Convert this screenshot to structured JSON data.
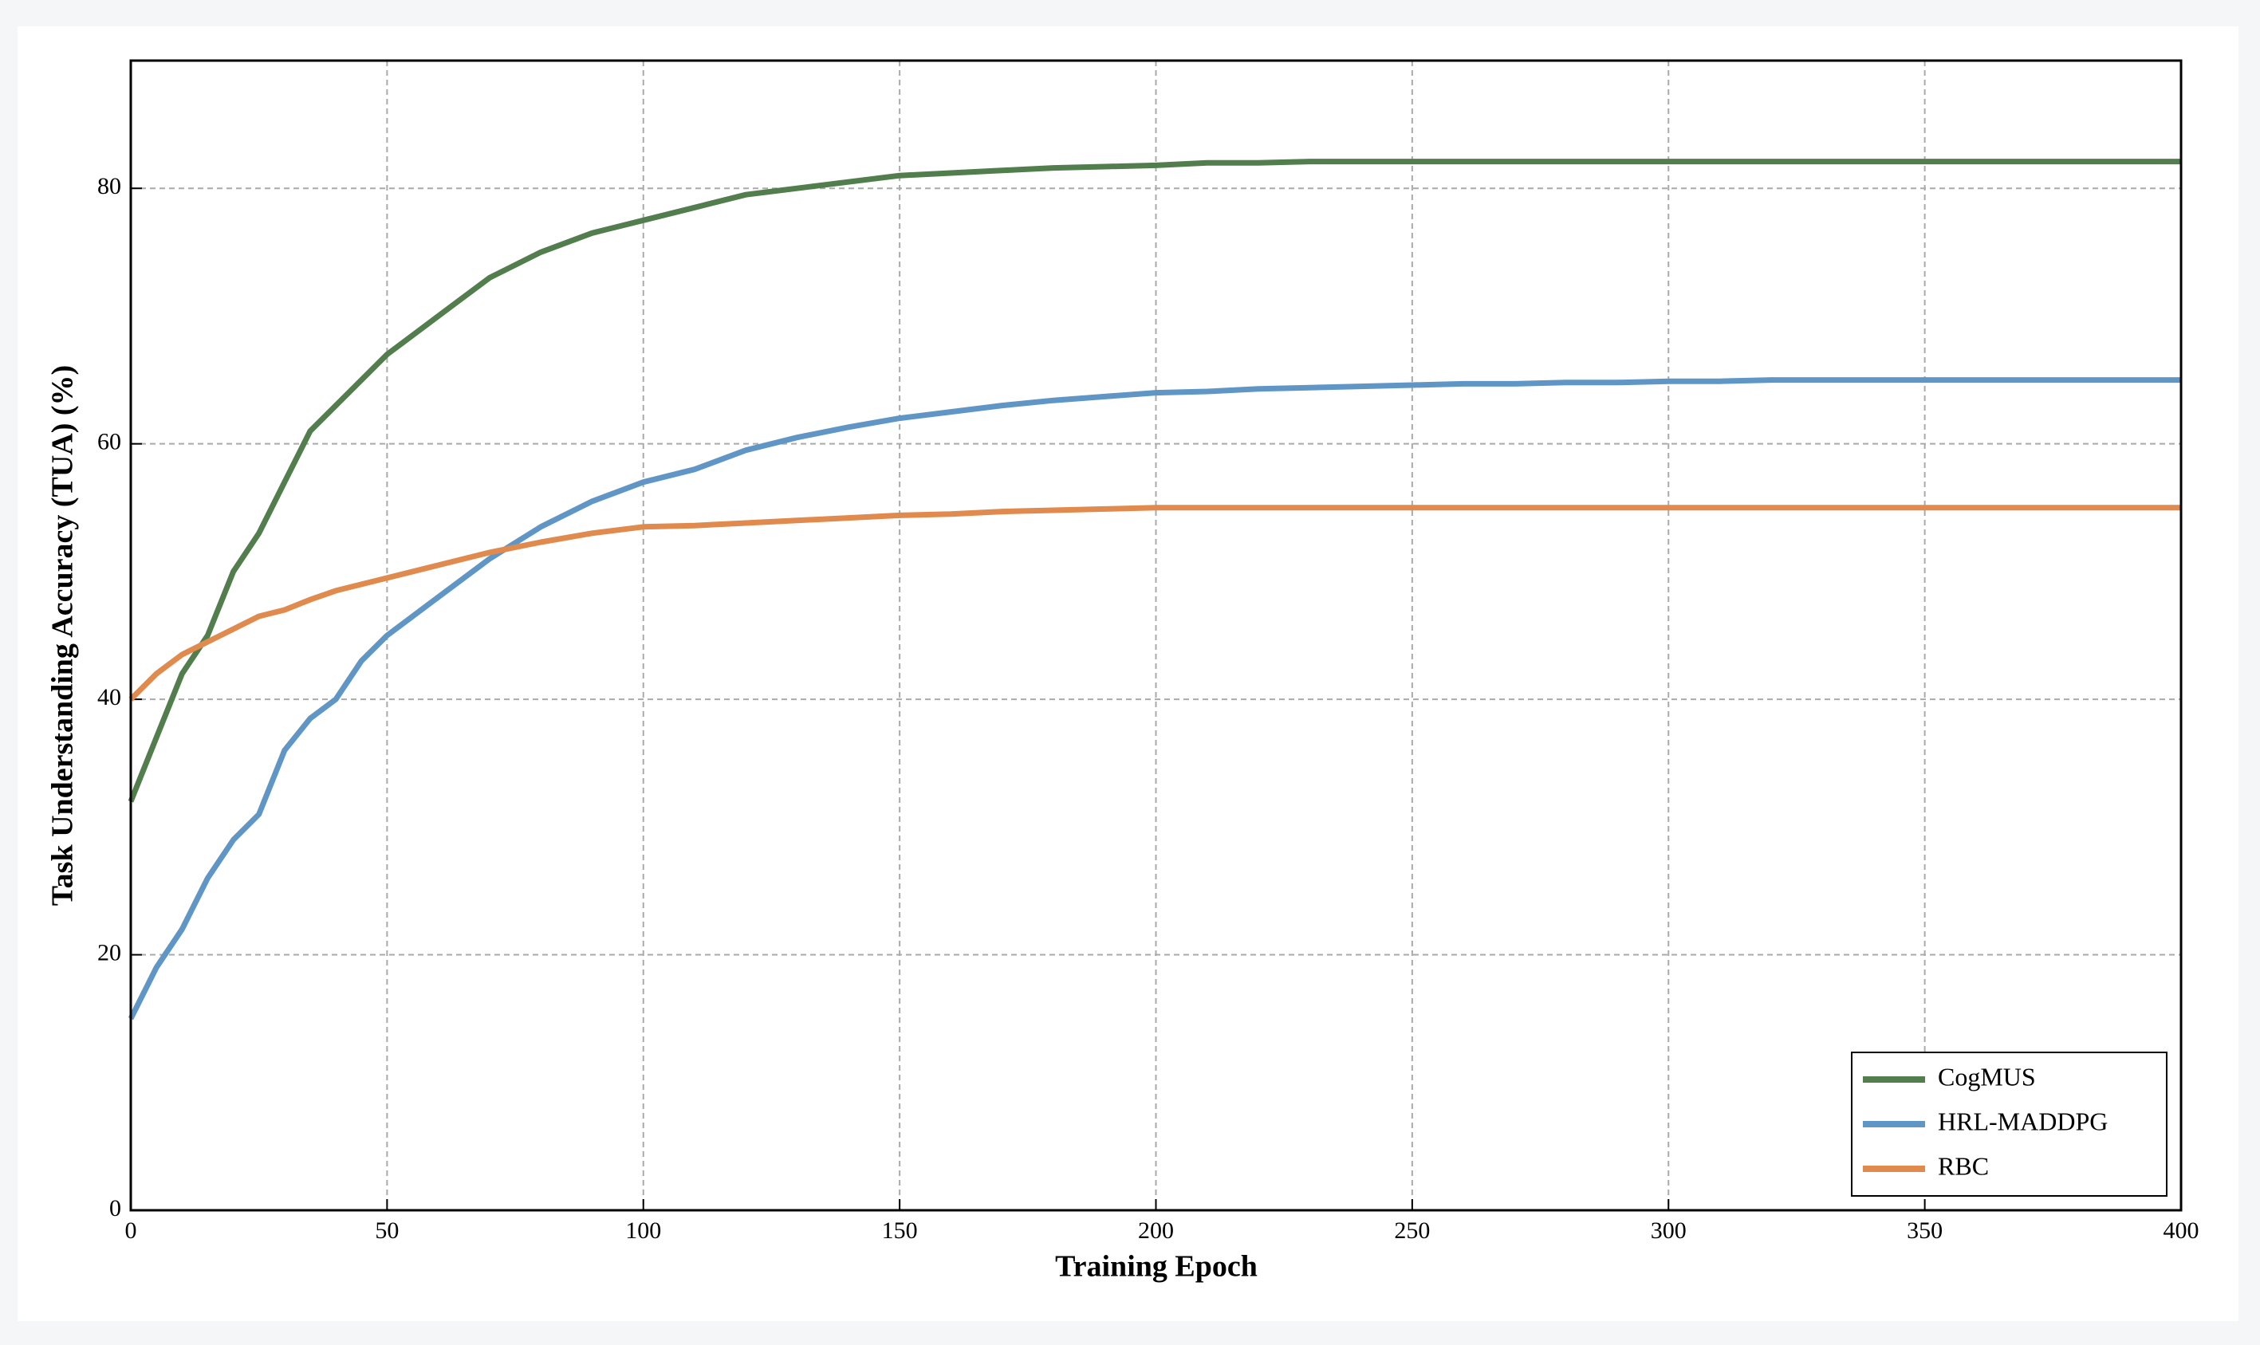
{
  "chart_data": {
    "type": "line",
    "x_label": "Training Epoch",
    "y_label": "Task Understanding Accuracy (TUA) (%)",
    "x": [
      0,
      5,
      10,
      15,
      20,
      25,
      30,
      35,
      40,
      45,
      50,
      60,
      70,
      80,
      90,
      100,
      110,
      120,
      130,
      140,
      150,
      160,
      170,
      180,
      190,
      200,
      210,
      220,
      230,
      240,
      250,
      260,
      270,
      280,
      290,
      300,
      310,
      320,
      330,
      340,
      350,
      360,
      370,
      380,
      390,
      400
    ],
    "series": [
      {
        "name": "CogMUS",
        "color": "#527d4c",
        "values": [
          32,
          37,
          42,
          45,
          50,
          53,
          57,
          61,
          63,
          65,
          67,
          70,
          73,
          75,
          76.5,
          77.5,
          78.5,
          79.5,
          80,
          80.5,
          81,
          81.2,
          81.4,
          81.6,
          81.7,
          81.8,
          82,
          82,
          82.1,
          82.1,
          82.1,
          82.1,
          82.1,
          82.1,
          82.1,
          82.1,
          82.1,
          82.1,
          82.1,
          82.1,
          82.1,
          82.1,
          82.1,
          82.1,
          82.1,
          82.1
        ]
      },
      {
        "name": "HRL-MADDPG",
        "color": "#5f96c6",
        "values": [
          15,
          19,
          22,
          26,
          29,
          31,
          36,
          38.5,
          40,
          43,
          45,
          48,
          51,
          53.5,
          55.5,
          57,
          58,
          59.5,
          60.5,
          61.3,
          62,
          62.5,
          63,
          63.4,
          63.7,
          64,
          64.1,
          64.3,
          64.4,
          64.5,
          64.6,
          64.7,
          64.7,
          64.8,
          64.8,
          64.9,
          64.9,
          65,
          65,
          65,
          65,
          65,
          65,
          65,
          65,
          65
        ]
      },
      {
        "name": "RBC",
        "color": "#e08a4e",
        "values": [
          40,
          42,
          43.5,
          44.5,
          45.5,
          46.5,
          47,
          47.8,
          48.5,
          49,
          49.5,
          50.5,
          51.5,
          52.3,
          53,
          53.5,
          53.6,
          53.8,
          54,
          54.2,
          54.4,
          54.5,
          54.7,
          54.8,
          54.9,
          55,
          55,
          55,
          55,
          55,
          55,
          55,
          55,
          55,
          55,
          55,
          55,
          55,
          55,
          55,
          55,
          55,
          55,
          55,
          55,
          55
        ]
      }
    ],
    "xlim": [
      0,
      400
    ],
    "xticks": [
      0,
      50,
      100,
      150,
      200,
      250,
      300,
      350,
      400
    ],
    "ylim": [
      0,
      90
    ],
    "yticks": [
      0,
      20,
      40,
      60,
      80
    ],
    "grid": true,
    "legend": "lower right"
  }
}
